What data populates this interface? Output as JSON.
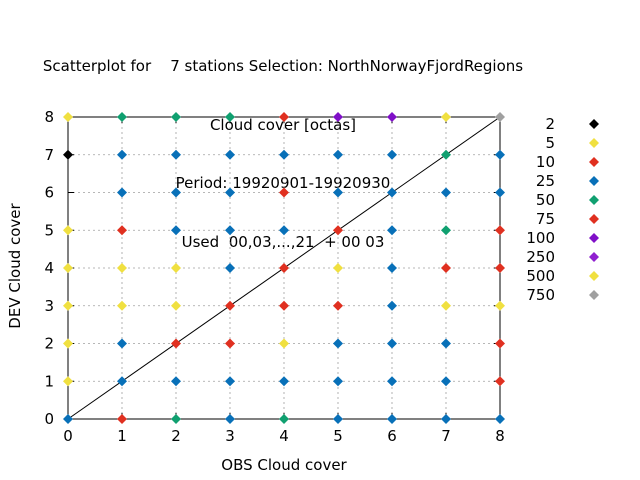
{
  "title_lines": [
    "Scatterplot for    7 stations Selection: NorthNorwayFjordRegions",
    "Cloud cover [octas]",
    "Period: 19920901-19920930",
    "Used  00,03,...,21  + 00 03"
  ],
  "chart_data": {
    "type": "scatter",
    "xlabel": "OBS Cloud cover",
    "ylabel": "DEV Cloud cover",
    "xlim": [
      0,
      8
    ],
    "ylim": [
      0,
      8
    ],
    "xticks": [
      "0",
      "1",
      "2",
      "3",
      "4",
      "5",
      "6",
      "7",
      "8"
    ],
    "yticks": [
      "0",
      "1",
      "2",
      "3",
      "4",
      "5",
      "6",
      "7",
      "8"
    ],
    "grid": true,
    "diagonal": true,
    "legend_position": "right",
    "legend": [
      {
        "label": "2",
        "color": "#000000"
      },
      {
        "label": "5",
        "color": "#f0e040"
      },
      {
        "label": "10",
        "color": "#e03020"
      },
      {
        "label": "25",
        "color": "#0870b8"
      },
      {
        "label": "50",
        "color": "#10a070"
      },
      {
        "label": "75",
        "color": "#e03020"
      },
      {
        "label": "100",
        "color": "#8010c8"
      },
      {
        "label": "250",
        "color": "#9020d0"
      },
      {
        "label": "500",
        "color": "#f0e040"
      },
      {
        "label": "750",
        "color": "#a0a0a0"
      }
    ],
    "points": [
      {
        "x": 0,
        "y": 0,
        "c": "25"
      },
      {
        "x": 1,
        "y": 0,
        "c": "10"
      },
      {
        "x": 2,
        "y": 0,
        "c": "50"
      },
      {
        "x": 3,
        "y": 0,
        "c": "25"
      },
      {
        "x": 4,
        "y": 0,
        "c": "50"
      },
      {
        "x": 5,
        "y": 0,
        "c": "25"
      },
      {
        "x": 6,
        "y": 0,
        "c": "25"
      },
      {
        "x": 7,
        "y": 0,
        "c": "25"
      },
      {
        "x": 8,
        "y": 0,
        "c": "25"
      },
      {
        "x": 0,
        "y": 1,
        "c": "5"
      },
      {
        "x": 1,
        "y": 1,
        "c": "25"
      },
      {
        "x": 2,
        "y": 1,
        "c": "25"
      },
      {
        "x": 3,
        "y": 1,
        "c": "25"
      },
      {
        "x": 4,
        "y": 1,
        "c": "25"
      },
      {
        "x": 5,
        "y": 1,
        "c": "25"
      },
      {
        "x": 6,
        "y": 1,
        "c": "25"
      },
      {
        "x": 7,
        "y": 1,
        "c": "25"
      },
      {
        "x": 8,
        "y": 1,
        "c": "10"
      },
      {
        "x": 0,
        "y": 2,
        "c": "5"
      },
      {
        "x": 1,
        "y": 2,
        "c": "25"
      },
      {
        "x": 2,
        "y": 2,
        "c": "10"
      },
      {
        "x": 3,
        "y": 2,
        "c": "10"
      },
      {
        "x": 4,
        "y": 2,
        "c": "5"
      },
      {
        "x": 5,
        "y": 2,
        "c": "25"
      },
      {
        "x": 6,
        "y": 2,
        "c": "25"
      },
      {
        "x": 7,
        "y": 2,
        "c": "25"
      },
      {
        "x": 8,
        "y": 2,
        "c": "10"
      },
      {
        "x": 0,
        "y": 3,
        "c": "5"
      },
      {
        "x": 1,
        "y": 3,
        "c": "5"
      },
      {
        "x": 2,
        "y": 3,
        "c": "5"
      },
      {
        "x": 3,
        "y": 3,
        "c": "10"
      },
      {
        "x": 4,
        "y": 3,
        "c": "10"
      },
      {
        "x": 5,
        "y": 3,
        "c": "10"
      },
      {
        "x": 6,
        "y": 3,
        "c": "25"
      },
      {
        "x": 7,
        "y": 3,
        "c": "5"
      },
      {
        "x": 8,
        "y": 3,
        "c": "5"
      },
      {
        "x": 0,
        "y": 4,
        "c": "5"
      },
      {
        "x": 1,
        "y": 4,
        "c": "5"
      },
      {
        "x": 2,
        "y": 4,
        "c": "5"
      },
      {
        "x": 3,
        "y": 4,
        "c": "25"
      },
      {
        "x": 4,
        "y": 4,
        "c": "10"
      },
      {
        "x": 5,
        "y": 4,
        "c": "5"
      },
      {
        "x": 6,
        "y": 4,
        "c": "25"
      },
      {
        "x": 7,
        "y": 4,
        "c": "10"
      },
      {
        "x": 8,
        "y": 4,
        "c": "10"
      },
      {
        "x": 0,
        "y": 5,
        "c": "5"
      },
      {
        "x": 1,
        "y": 5,
        "c": "10"
      },
      {
        "x": 2,
        "y": 5,
        "c": "25"
      },
      {
        "x": 3,
        "y": 5,
        "c": "25"
      },
      {
        "x": 4,
        "y": 5,
        "c": "25"
      },
      {
        "x": 5,
        "y": 5,
        "c": "10"
      },
      {
        "x": 6,
        "y": 5,
        "c": "25"
      },
      {
        "x": 7,
        "y": 5,
        "c": "50"
      },
      {
        "x": 8,
        "y": 5,
        "c": "10"
      },
      {
        "x": 1,
        "y": 6,
        "c": "25"
      },
      {
        "x": 2,
        "y": 6,
        "c": "25"
      },
      {
        "x": 3,
        "y": 6,
        "c": "25"
      },
      {
        "x": 4,
        "y": 6,
        "c": "10"
      },
      {
        "x": 5,
        "y": 6,
        "c": "25"
      },
      {
        "x": 6,
        "y": 6,
        "c": "25"
      },
      {
        "x": 7,
        "y": 6,
        "c": "25"
      },
      {
        "x": 8,
        "y": 6,
        "c": "25"
      },
      {
        "x": 0,
        "y": 7,
        "c": "2"
      },
      {
        "x": 1,
        "y": 7,
        "c": "25"
      },
      {
        "x": 2,
        "y": 7,
        "c": "25"
      },
      {
        "x": 3,
        "y": 7,
        "c": "25"
      },
      {
        "x": 4,
        "y": 7,
        "c": "25"
      },
      {
        "x": 5,
        "y": 7,
        "c": "25"
      },
      {
        "x": 6,
        "y": 7,
        "c": "25"
      },
      {
        "x": 7,
        "y": 7,
        "c": "50"
      },
      {
        "x": 8,
        "y": 7,
        "c": "25"
      },
      {
        "x": 0,
        "y": 8,
        "c": "5"
      },
      {
        "x": 1,
        "y": 8,
        "c": "50"
      },
      {
        "x": 2,
        "y": 8,
        "c": "50"
      },
      {
        "x": 3,
        "y": 8,
        "c": "50"
      },
      {
        "x": 4,
        "y": 8,
        "c": "10"
      },
      {
        "x": 5,
        "y": 8,
        "c": "100"
      },
      {
        "x": 6,
        "y": 8,
        "c": "100"
      },
      {
        "x": 7,
        "y": 8,
        "c": "5"
      },
      {
        "x": 8,
        "y": 8,
        "c": "750"
      }
    ]
  }
}
